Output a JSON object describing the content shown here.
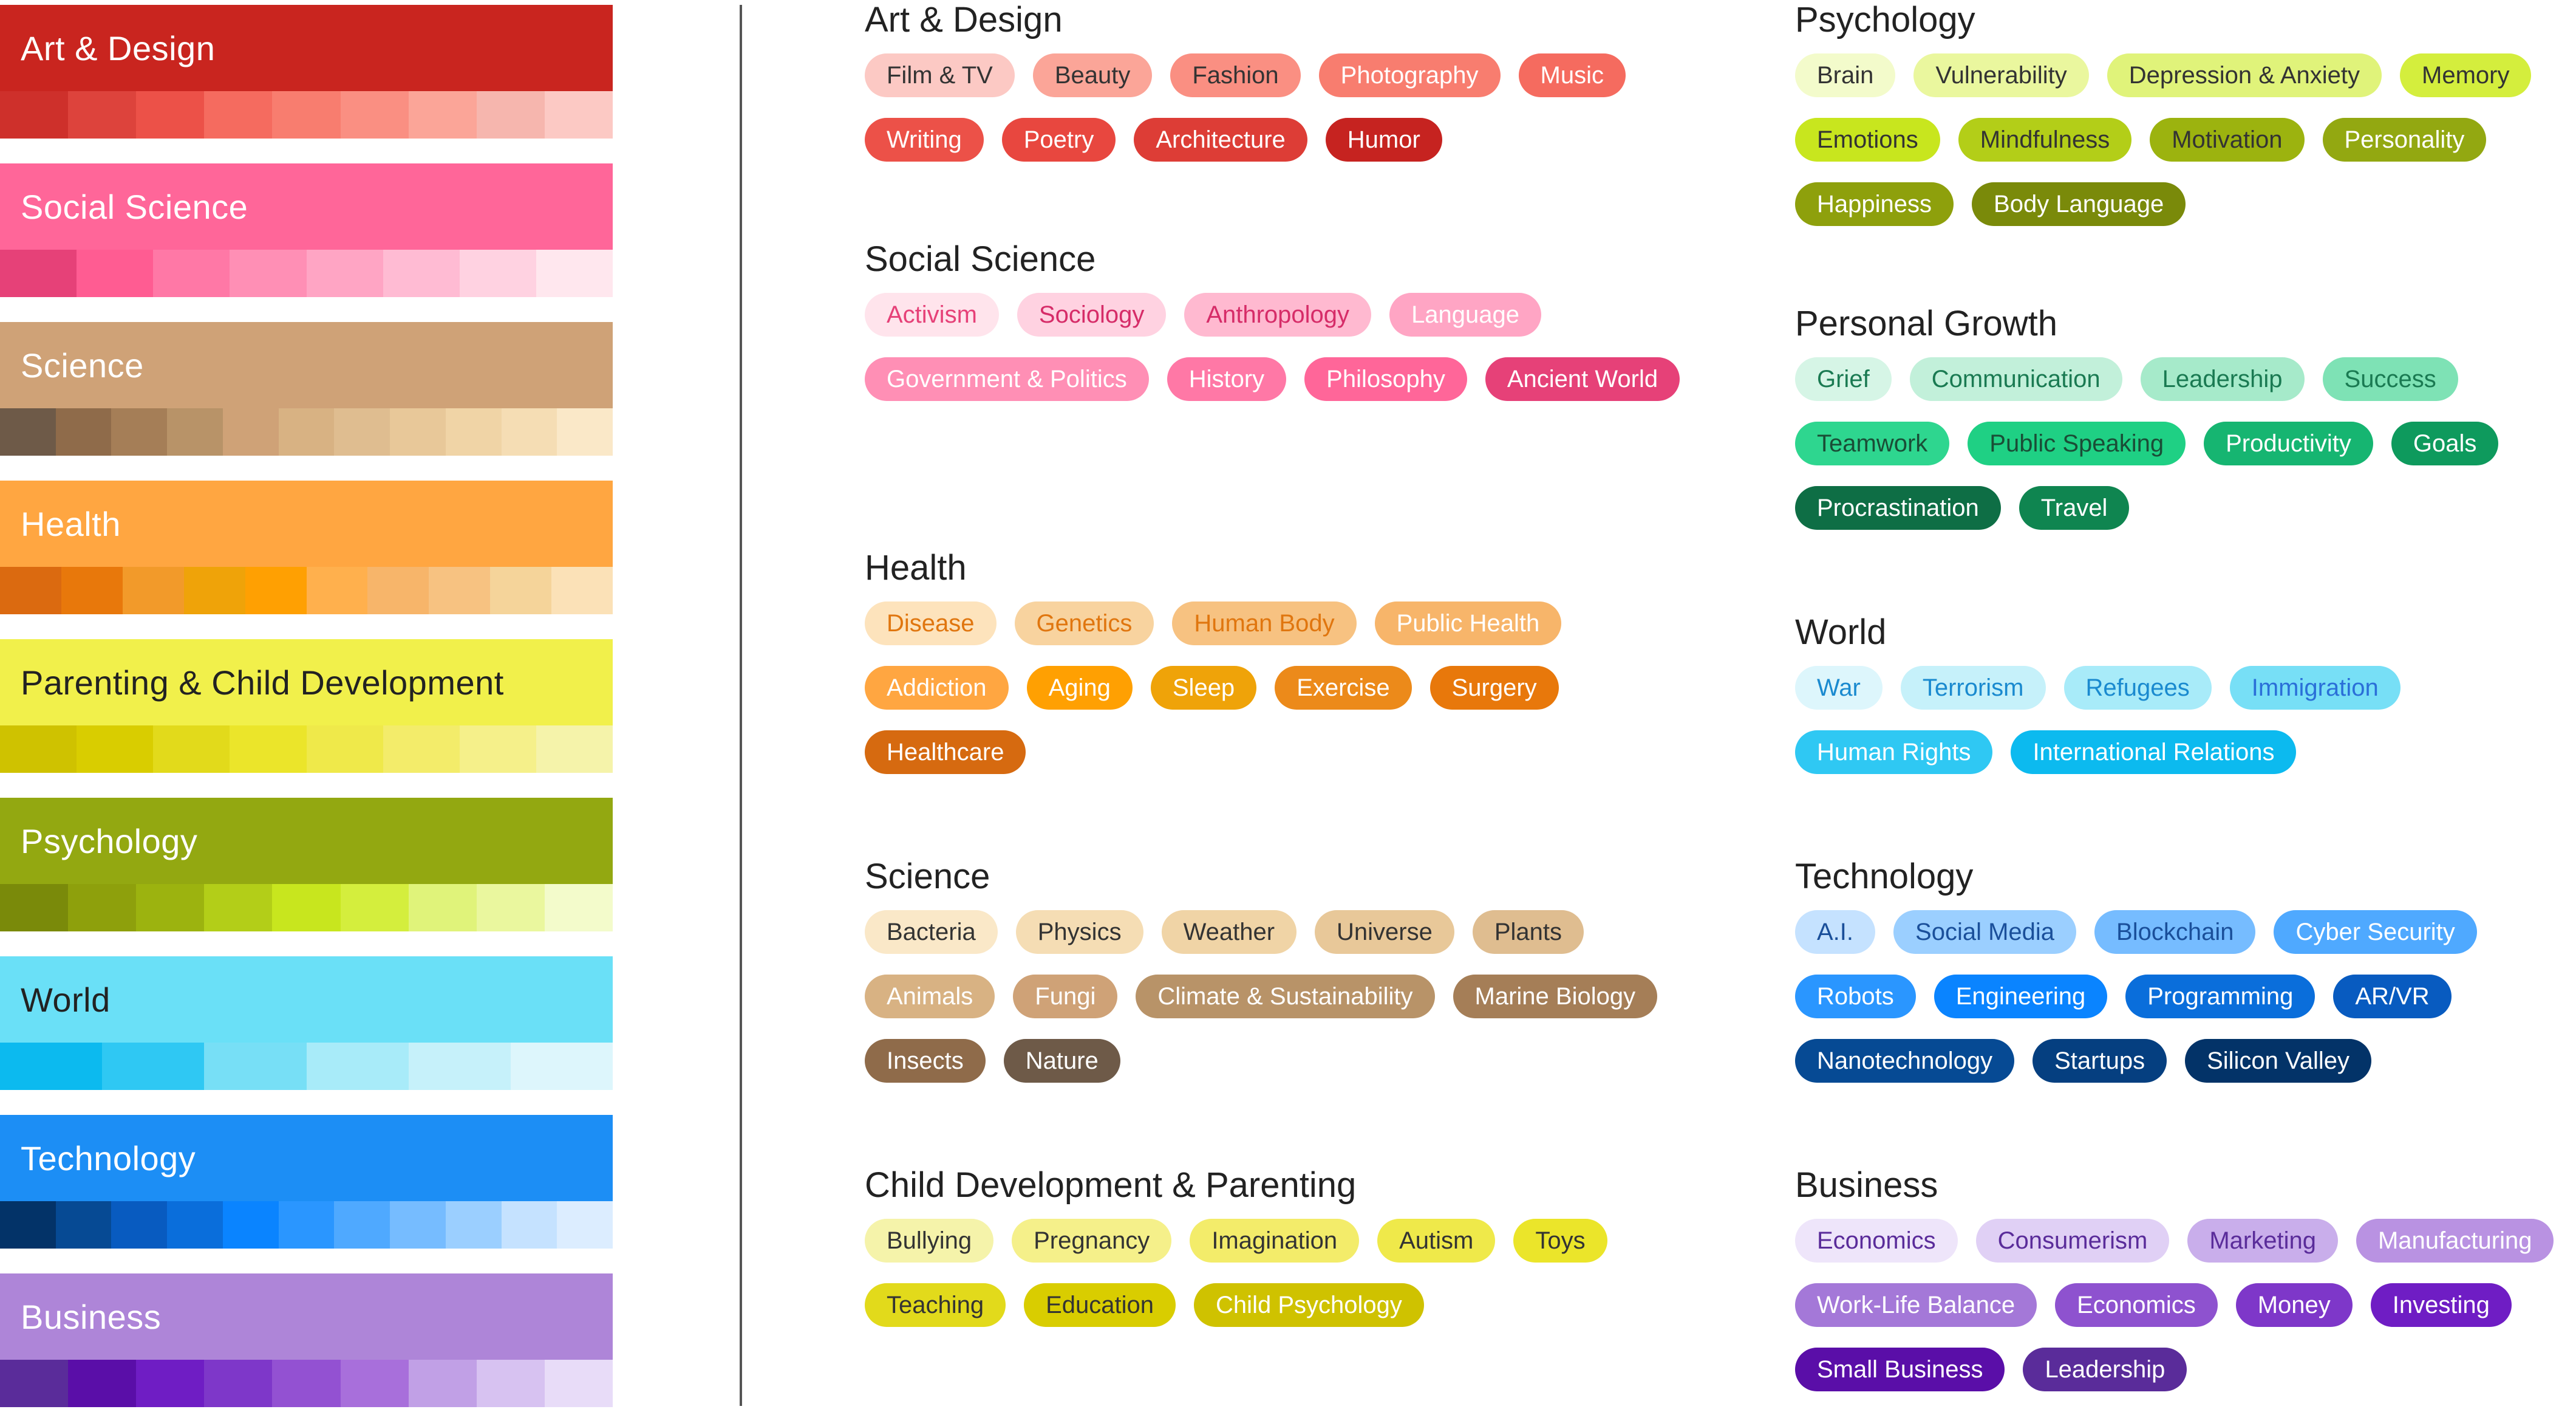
{
  "palette": [
    {
      "title": "Art & Design",
      "header_color": "#C9251F",
      "text_color": "#ffffff",
      "swatches": [
        "#CE302B",
        "#DD433C",
        "#EC5148",
        "#F56B5F",
        "#F87D6F",
        "#FA8F82",
        "#FBA598",
        "#F6B6AE",
        "#FCC9C4"
      ]
    },
    {
      "title": "Social Science",
      "header_color": "#FF6699",
      "text_color": "#ffffff",
      "swatches": [
        "#E64178",
        "#FF5C92",
        "#FF78A6",
        "#FF8FB5",
        "#FFA5C4",
        "#FFBBD3",
        "#FFD2E1",
        "#FFE7EE"
      ]
    },
    {
      "title": "Science",
      "header_color": "#CFA277",
      "text_color": "#ffffff",
      "swatches": [
        "#6E5A48",
        "#8F6B4A",
        "#A57E57",
        "#B89368",
        "#CFA277",
        "#D8B283",
        "#DFBD90",
        "#E8C899",
        "#F0D4A6",
        "#F5DDB4",
        "#FAE8C8"
      ]
    },
    {
      "title": "Health",
      "header_color": "#FFA641",
      "text_color": "#ffffff",
      "swatches": [
        "#DB6A10",
        "#E8780B",
        "#F29A2A",
        "#EFA309",
        "#FFA002",
        "#FFB04D",
        "#F7B56A",
        "#F7C281",
        "#F5D49A",
        "#FBE1B7"
      ]
    },
    {
      "title": "Parenting & Child Development",
      "header_color": "#F1F04B",
      "text_color": "#222222",
      "swatches": [
        "#CFC200",
        "#D9CD00",
        "#E2DA1B",
        "#EBE52A",
        "#EFE94A",
        "#F3EC6A",
        "#F5F08A",
        "#F5F3AA"
      ]
    },
    {
      "title": "Psychology",
      "header_color": "#93A811",
      "text_color": "#ffffff",
      "swatches": [
        "#7A8A0A",
        "#8EA00C",
        "#9CB30F",
        "#B3CE18",
        "#C8E61E",
        "#D4EE3D",
        "#E0F37A",
        "#EAF79E",
        "#F3FBCB"
      ]
    },
    {
      "title": "World",
      "header_color": "#6AE0F7",
      "text_color": "#222222",
      "swatches": [
        "#0CBAEF",
        "#2FC8F3",
        "#77DFF6",
        "#A8EBF9",
        "#C6F1FA",
        "#DDF6FC"
      ]
    },
    {
      "title": "Technology",
      "header_color": "#1C8EF5",
      "text_color": "#ffffff",
      "swatches": [
        "#033368",
        "#064A94",
        "#085BC0",
        "#0A6EDB",
        "#0A84FF",
        "#2A96FF",
        "#4FA9FF",
        "#76BCFF",
        "#9BCFFF",
        "#C5E2FF",
        "#DCEDFF"
      ]
    },
    {
      "title": "Business",
      "header_color": "#AE85D8",
      "text_color": "#ffffff",
      "swatches": [
        "#5A2C9A",
        "#5A0EA8",
        "#6F1DC4",
        "#7E37C9",
        "#9351D2",
        "#A86FDB",
        "#C1A0E6",
        "#D7C2F1",
        "#E8DCF8"
      ]
    }
  ],
  "categories": [
    {
      "title": "Art & Design",
      "tags": [
        {
          "label": "Film & TV",
          "bg": "#FCC9C4",
          "fg": "#333333"
        },
        {
          "label": "Beauty",
          "bg": "#FBA598",
          "fg": "#333333"
        },
        {
          "label": "Fashion",
          "bg": "#FA8F82",
          "fg": "#333333"
        },
        {
          "label": "Photography",
          "bg": "#F87D6F",
          "fg": "#ffffff"
        },
        {
          "label": "Music",
          "bg": "#F56B5F",
          "fg": "#ffffff"
        },
        {
          "label": "Writing",
          "bg": "#EC5148",
          "fg": "#ffffff"
        },
        {
          "label": "Poetry",
          "bg": "#E8473F",
          "fg": "#ffffff"
        },
        {
          "label": "Architecture",
          "bg": "#DD3D36",
          "fg": "#ffffff"
        },
        {
          "label": "Humor",
          "bg": "#C62320",
          "fg": "#ffffff"
        }
      ]
    },
    {
      "title": "Social Science",
      "tags": [
        {
          "label": "Activism",
          "bg": "#FFE4EC",
          "fg": "#E64178"
        },
        {
          "label": "Sociology",
          "bg": "#FFD2E1",
          "fg": "#D62C68"
        },
        {
          "label": "Anthropology",
          "bg": "#FFB9D0",
          "fg": "#D62C68"
        },
        {
          "label": "Language",
          "bg": "#FFA5C4",
          "fg": "#ffffff"
        },
        {
          "label": "Government & Politics",
          "bg": "#FF8FB5",
          "fg": "#ffffff"
        },
        {
          "label": "History",
          "bg": "#FF78A6",
          "fg": "#ffffff"
        },
        {
          "label": "Philosophy",
          "bg": "#FF6699",
          "fg": "#ffffff"
        },
        {
          "label": "Ancient World",
          "bg": "#E64178",
          "fg": "#ffffff"
        }
      ]
    },
    {
      "title": "Health",
      "tags": [
        {
          "label": "Disease",
          "bg": "#FDE3BC",
          "fg": "#E0760F"
        },
        {
          "label": "Genetics",
          "bg": "#F8D39F",
          "fg": "#E0760F"
        },
        {
          "label": "Human Body",
          "bg": "#F7C281",
          "fg": "#E0760F"
        },
        {
          "label": "Public Health",
          "bg": "#F7B56A",
          "fg": "#ffffff"
        },
        {
          "label": "Addiction",
          "bg": "#FFA641",
          "fg": "#ffffff"
        },
        {
          "label": "Aging",
          "bg": "#FFA002",
          "fg": "#ffffff"
        },
        {
          "label": "Sleep",
          "bg": "#EFA309",
          "fg": "#ffffff"
        },
        {
          "label": "Exercise",
          "bg": "#EC8A1A",
          "fg": "#ffffff"
        },
        {
          "label": "Surgery",
          "bg": "#E8780B",
          "fg": "#ffffff"
        },
        {
          "label": "Healthcare",
          "bg": "#D66A10",
          "fg": "#ffffff"
        }
      ]
    },
    {
      "title": "Science",
      "tags": [
        {
          "label": "Bacteria",
          "bg": "#FAE8C8",
          "fg": "#333333"
        },
        {
          "label": "Physics",
          "bg": "#F5DDB4",
          "fg": "#333333"
        },
        {
          "label": "Weather",
          "bg": "#F0D4A6",
          "fg": "#333333"
        },
        {
          "label": "Universe",
          "bg": "#E8C899",
          "fg": "#333333"
        },
        {
          "label": "Plants",
          "bg": "#DFBD90",
          "fg": "#333333"
        },
        {
          "label": "Animals",
          "bg": "#D8B283",
          "fg": "#ffffff"
        },
        {
          "label": "Fungi",
          "bg": "#CFA277",
          "fg": "#ffffff"
        },
        {
          "label": "Climate & Sustainability",
          "bg": "#B89368",
          "fg": "#ffffff"
        },
        {
          "label": "Marine Biology",
          "bg": "#A57E57",
          "fg": "#ffffff"
        },
        {
          "label": "Insects",
          "bg": "#8F6B4A",
          "fg": "#ffffff"
        },
        {
          "label": "Nature",
          "bg": "#6E5A48",
          "fg": "#ffffff"
        }
      ]
    },
    {
      "title": "Child Development & Parenting",
      "tags": [
        {
          "label": "Bullying",
          "bg": "#F5F3AA",
          "fg": "#333333"
        },
        {
          "label": "Pregnancy",
          "bg": "#F5F08A",
          "fg": "#333333"
        },
        {
          "label": "Imagination",
          "bg": "#F3EC6A",
          "fg": "#333333"
        },
        {
          "label": "Autism",
          "bg": "#EFE94A",
          "fg": "#333333"
        },
        {
          "label": "Toys",
          "bg": "#EBE52A",
          "fg": "#333333"
        },
        {
          "label": "Teaching",
          "bg": "#E2DA1B",
          "fg": "#333333"
        },
        {
          "label": "Education",
          "bg": "#D9CD00",
          "fg": "#333333"
        },
        {
          "label": "Child Psychology",
          "bg": "#CFC200",
          "fg": "#ffffff"
        }
      ]
    },
    {
      "title": "Psychology",
      "tags": [
        {
          "label": "Brain",
          "bg": "#F3FBCB",
          "fg": "#333333"
        },
        {
          "label": "Vulnerability",
          "bg": "#EAF79E",
          "fg": "#333333"
        },
        {
          "label": "Depression & Anxiety",
          "bg": "#E0F37A",
          "fg": "#333333"
        },
        {
          "label": "Memory",
          "bg": "#D4EE3D",
          "fg": "#333333"
        },
        {
          "label": "Emotions",
          "bg": "#C8E61E",
          "fg": "#333333"
        },
        {
          "label": "Mindfulness",
          "bg": "#B3CE18",
          "fg": "#333333"
        },
        {
          "label": "Motivation",
          "bg": "#9CB30F",
          "fg": "#333333"
        },
        {
          "label": "Personality",
          "bg": "#93A811",
          "fg": "#ffffff"
        },
        {
          "label": "Happiness",
          "bg": "#8EA00C",
          "fg": "#ffffff"
        },
        {
          "label": "Body Language",
          "bg": "#7A8A0A",
          "fg": "#ffffff"
        }
      ]
    },
    {
      "title": "Personal Growth",
      "tags": [
        {
          "label": "Grief",
          "bg": "#D6F5E6",
          "fg": "#1A7A52"
        },
        {
          "label": "Communication",
          "bg": "#C2F0DA",
          "fg": "#1A7A52"
        },
        {
          "label": "Leadership",
          "bg": "#A6EACA",
          "fg": "#1A7A52"
        },
        {
          "label": "Success",
          "bg": "#7EE2B5",
          "fg": "#1A7A52"
        },
        {
          "label": "Teamwork",
          "bg": "#2ED68F",
          "fg": "#1A4D36"
        },
        {
          "label": "Public Speaking",
          "bg": "#1FD084",
          "fg": "#1A4D36"
        },
        {
          "label": "Productivity",
          "bg": "#16B571",
          "fg": "#ffffff"
        },
        {
          "label": "Goals",
          "bg": "#0E9A5D",
          "fg": "#ffffff"
        },
        {
          "label": "Procrastination",
          "bg": "#0E6E45",
          "fg": "#ffffff"
        },
        {
          "label": "Travel",
          "bg": "#0F8550",
          "fg": "#ffffff"
        }
      ]
    },
    {
      "title": "World",
      "tags": [
        {
          "label": "War",
          "bg": "#DDF6FC",
          "fg": "#1A8ACF"
        },
        {
          "label": "Terrorism",
          "bg": "#C6F1FA",
          "fg": "#1A8ACF"
        },
        {
          "label": "Refugees",
          "bg": "#A8EBF9",
          "fg": "#1A8ACF"
        },
        {
          "label": "Immigration",
          "bg": "#77DFF6",
          "fg": "#2A6FD8"
        },
        {
          "label": "Human Rights",
          "bg": "#2FC8F3",
          "fg": "#ffffff"
        },
        {
          "label": "International Relations",
          "bg": "#0CBAEF",
          "fg": "#ffffff"
        }
      ]
    },
    {
      "title": "Technology",
      "tags": [
        {
          "label": "A.I.",
          "bg": "#C5E2FF",
          "fg": "#1A4F9A"
        },
        {
          "label": "Social Media",
          "bg": "#9BCFFF",
          "fg": "#1A4F9A"
        },
        {
          "label": "Blockchain",
          "bg": "#76BCFF",
          "fg": "#1A4F9A"
        },
        {
          "label": "Cyber Security",
          "bg": "#4FA9FF",
          "fg": "#ffffff"
        },
        {
          "label": "Robots",
          "bg": "#2A96FF",
          "fg": "#ffffff"
        },
        {
          "label": "Engineering",
          "bg": "#0A84FF",
          "fg": "#ffffff"
        },
        {
          "label": "Programming",
          "bg": "#0A6EDB",
          "fg": "#ffffff"
        },
        {
          "label": "AR/VR",
          "bg": "#085BC0",
          "fg": "#ffffff"
        },
        {
          "label": "Nanotechnology",
          "bg": "#064A94",
          "fg": "#ffffff"
        },
        {
          "label": "Startups",
          "bg": "#053F80",
          "fg": "#ffffff"
        },
        {
          "label": "Silicon Valley",
          "bg": "#033368",
          "fg": "#ffffff"
        }
      ]
    },
    {
      "title": "Business",
      "tags": [
        {
          "label": "Economics",
          "bg": "#EEE5FA",
          "fg": "#5A2C9A"
        },
        {
          "label": "Consumerism",
          "bg": "#E0D0F5",
          "fg": "#5A2C9A"
        },
        {
          "label": "Marketing",
          "bg": "#C9AEEB",
          "fg": "#5A2C9A"
        },
        {
          "label": "Manufacturing",
          "bg": "#B992E2",
          "fg": "#ffffff"
        },
        {
          "label": "Work-Life Balance",
          "bg": "#A478D8",
          "fg": "#ffffff"
        },
        {
          "label": "Economics",
          "bg": "#8E52CF",
          "fg": "#ffffff"
        },
        {
          "label": "Money",
          "bg": "#7E37C9",
          "fg": "#ffffff"
        },
        {
          "label": "Investing",
          "bg": "#6F1DC4",
          "fg": "#ffffff"
        },
        {
          "label": "Small Business",
          "bg": "#5A0EA8",
          "fg": "#ffffff"
        },
        {
          "label": "Leadership",
          "bg": "#5A2C9A",
          "fg": "#ffffff"
        }
      ]
    }
  ]
}
